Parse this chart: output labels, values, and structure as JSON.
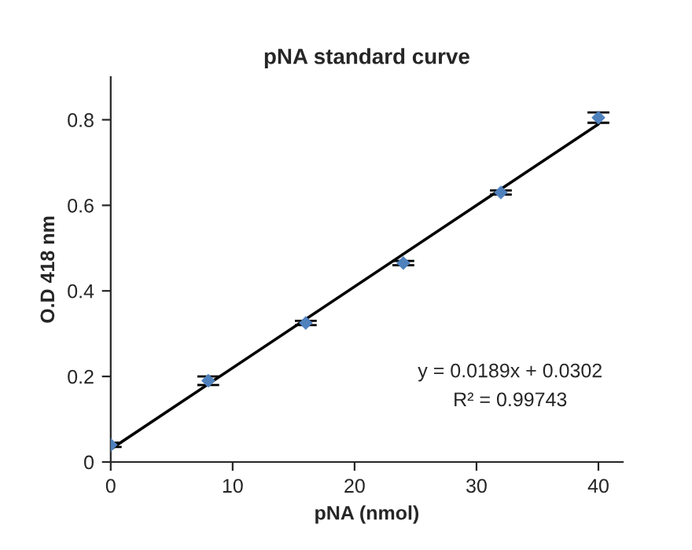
{
  "chart_data": {
    "type": "scatter",
    "title": "pNA standard curve",
    "xlabel": "pNA (nmol)",
    "ylabel": "O.D 418 nm",
    "xlim": [
      0,
      42
    ],
    "xticks": [
      0,
      10,
      20,
      30,
      40
    ],
    "ylim": [
      0,
      0.9
    ],
    "yticks": [
      0,
      0.2,
      0.4,
      0.6,
      0.8
    ],
    "grid": false,
    "legend": false,
    "annotations": [
      "y = 0.0189x + 0.0302",
      "R² = 0.99743"
    ],
    "series": [
      {
        "color": "#4f81bd",
        "marker": "diamond",
        "x": [
          0,
          8,
          16,
          24,
          32,
          40
        ],
        "values": [
          0.04,
          0.19,
          0.325,
          0.465,
          0.63,
          0.805
        ],
        "errors": [
          0.005,
          0.01,
          0.005,
          0.005,
          0.005,
          0.012
        ]
      },
      {
        "type": "line",
        "color": "#000000",
        "x": [
          0,
          40
        ],
        "values": [
          0.03,
          0.79
        ],
        "line_style": "solid"
      }
    ]
  }
}
